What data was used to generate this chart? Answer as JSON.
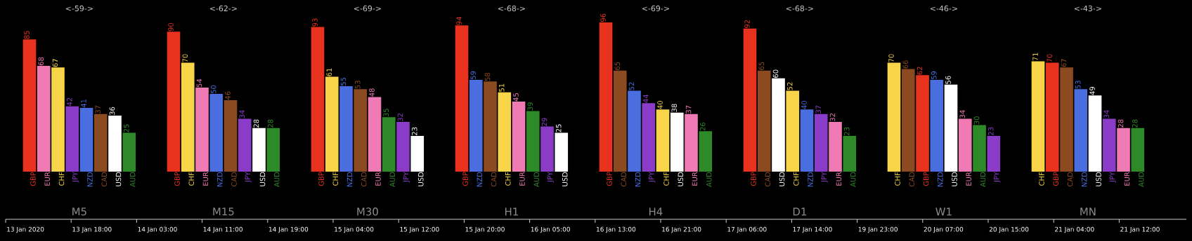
{
  "chart_data": [
    {
      "type": "bar",
      "title": "<-59->",
      "xlabel": "M5",
      "data_labels": true,
      "categories": [
        "GBP",
        "EUR",
        "CHF",
        "JPY",
        "NZD",
        "CAD",
        "USD",
        "AUD"
      ],
      "values": [
        85,
        68,
        67,
        42,
        41,
        37,
        36,
        25
      ],
      "colors": [
        "#e8321e",
        "#f07ab4",
        "#f8d448",
        "#8a3cc8",
        "#4a6ee0",
        "#8b4a20",
        "#ffffff",
        "#2e8a28"
      ]
    },
    {
      "type": "bar",
      "title": "<-62->",
      "xlabel": "M15",
      "data_labels": true,
      "categories": [
        "GBP",
        "CHF",
        "EUR",
        "NZD",
        "CAD",
        "JPY",
        "USD",
        "AUD"
      ],
      "values": [
        90,
        70,
        54,
        50,
        46,
        34,
        28,
        28
      ],
      "colors": [
        "#e8321e",
        "#f8d448",
        "#f07ab4",
        "#4a6ee0",
        "#8b4a20",
        "#8a3cc8",
        "#ffffff",
        "#2e8a28"
      ]
    },
    {
      "type": "bar",
      "title": "<-69->",
      "xlabel": "M30",
      "data_labels": true,
      "categories": [
        "GBP",
        "CHF",
        "NZD",
        "CAD",
        "EUR",
        "AUD",
        "JPY",
        "USD"
      ],
      "values": [
        93,
        61,
        55,
        53,
        48,
        35,
        32,
        23
      ],
      "colors": [
        "#e8321e",
        "#f8d448",
        "#4a6ee0",
        "#8b4a20",
        "#f07ab4",
        "#2e8a28",
        "#8a3cc8",
        "#ffffff"
      ]
    },
    {
      "type": "bar",
      "title": "<-68->",
      "xlabel": "H1",
      "data_labels": true,
      "categories": [
        "GBP",
        "NZD",
        "CAD",
        "CHF",
        "EUR",
        "AUD",
        "JPY",
        "USD"
      ],
      "values": [
        94,
        59,
        58,
        51,
        45,
        39,
        29,
        25
      ],
      "colors": [
        "#e8321e",
        "#4a6ee0",
        "#8b4a20",
        "#f8d448",
        "#f07ab4",
        "#2e8a28",
        "#8a3cc8",
        "#ffffff"
      ]
    },
    {
      "type": "bar",
      "title": "<-69->",
      "xlabel": "H4",
      "data_labels": true,
      "categories": [
        "GBP",
        "CAD",
        "NZD",
        "JPY",
        "CHF",
        "USD",
        "EUR",
        "AUD"
      ],
      "values": [
        96,
        65,
        52,
        44,
        40,
        38,
        37,
        26
      ],
      "colors": [
        "#e8321e",
        "#8b4a20",
        "#4a6ee0",
        "#8a3cc8",
        "#f8d448",
        "#ffffff",
        "#f07ab4",
        "#2e8a28"
      ]
    },
    {
      "type": "bar",
      "title": "<-68->",
      "xlabel": "D1",
      "data_labels": true,
      "categories": [
        "GBP",
        "CAD",
        "USD",
        "CHF",
        "NZD",
        "JPY",
        "EUR",
        "AUD"
      ],
      "values": [
        92,
        65,
        60,
        52,
        40,
        37,
        32,
        23
      ],
      "colors": [
        "#e8321e",
        "#8b4a20",
        "#ffffff",
        "#f8d448",
        "#4a6ee0",
        "#8a3cc8",
        "#f07ab4",
        "#2e8a28"
      ]
    },
    {
      "type": "bar",
      "title": "<-46->",
      "xlabel": "W1",
      "data_labels": true,
      "categories": [
        "CHF",
        "CAD",
        "GBP",
        "NZD",
        "USD",
        "EUR",
        "AUD",
        "JPY"
      ],
      "values": [
        70,
        66,
        62,
        59,
        56,
        34,
        30,
        23
      ],
      "colors": [
        "#f8d448",
        "#8b4a20",
        "#e8321e",
        "#4a6ee0",
        "#ffffff",
        "#f07ab4",
        "#2e8a28",
        "#8a3cc8"
      ]
    },
    {
      "type": "bar",
      "title": "<-43->",
      "xlabel": "MN",
      "data_labels": true,
      "categories": [
        "CHF",
        "GBP",
        "CAD",
        "NZD",
        "USD",
        "JPY",
        "EUR",
        "AUD"
      ],
      "values": [
        71,
        70,
        67,
        53,
        49,
        34,
        28,
        28
      ],
      "colors": [
        "#f8d448",
        "#e8321e",
        "#8b4a20",
        "#4a6ee0",
        "#ffffff",
        "#8a3cc8",
        "#f07ab4",
        "#2e8a28"
      ]
    },
    {
      "type": "other",
      "annotations": [
        "13 Jan 2020",
        "13 Jan 18:00",
        "14 Jan 03:00",
        "14 Jan 11:00",
        "14 Jan 19:00",
        "15 Jan 04:00",
        "15 Jan 12:00",
        "15 Jan 20:00",
        "16 Jan 05:00",
        "16 Jan 13:00",
        "16 Jan 21:00",
        "17 Jan 06:00",
        "17 Jan 14:00",
        "19 Jan 23:00",
        "20 Jan 07:00",
        "20 Jan 15:00",
        "21 Jan 04:00",
        "21 Jan 12:00"
      ]
    }
  ]
}
